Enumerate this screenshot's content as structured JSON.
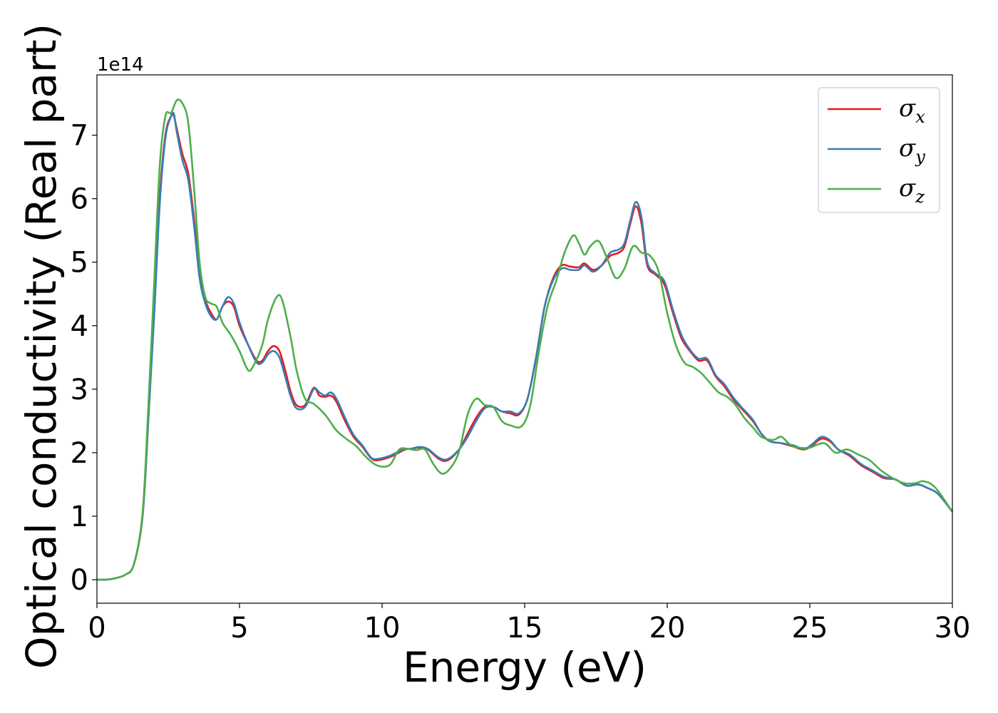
{
  "chart_data": {
    "type": "line",
    "xlabel": "Energy (eV)",
    "ylabel": "Optical conductivity (Real part)",
    "y_offset_label": "1e14",
    "xlim": [
      0,
      30
    ],
    "ylim": [
      -0.37,
      7.95
    ],
    "x_ticks": [
      0,
      5,
      10,
      15,
      20,
      25,
      30
    ],
    "y_ticks": [
      0,
      1,
      2,
      3,
      4,
      5,
      6,
      7
    ],
    "grid": false,
    "legend_position": "top-right",
    "series": [
      {
        "name": "σx",
        "symbol": "σ",
        "subscript": "x",
        "color": "#e41a1c",
        "points": [
          [
            0,
            0
          ],
          [
            0.5,
            0.01
          ],
          [
            1.0,
            0.08
          ],
          [
            1.3,
            0.25
          ],
          [
            1.6,
            1.0
          ],
          [
            1.8,
            2.5
          ],
          [
            2.0,
            4.2
          ],
          [
            2.2,
            6.0
          ],
          [
            2.4,
            7.0
          ],
          [
            2.6,
            7.3
          ],
          [
            2.7,
            7.3
          ],
          [
            2.8,
            7.1
          ],
          [
            3.0,
            6.7
          ],
          [
            3.2,
            6.4
          ],
          [
            3.4,
            5.7
          ],
          [
            3.6,
            4.8
          ],
          [
            3.8,
            4.4
          ],
          [
            4.0,
            4.2
          ],
          [
            4.2,
            4.1
          ],
          [
            4.4,
            4.3
          ],
          [
            4.6,
            4.38
          ],
          [
            4.8,
            4.3
          ],
          [
            5.0,
            4.0
          ],
          [
            5.3,
            3.7
          ],
          [
            5.6,
            3.45
          ],
          [
            5.8,
            3.45
          ],
          [
            6.0,
            3.6
          ],
          [
            6.2,
            3.68
          ],
          [
            6.4,
            3.6
          ],
          [
            6.6,
            3.3
          ],
          [
            6.8,
            2.95
          ],
          [
            7.0,
            2.75
          ],
          [
            7.3,
            2.75
          ],
          [
            7.6,
            3.02
          ],
          [
            7.8,
            2.9
          ],
          [
            8.0,
            2.88
          ],
          [
            8.2,
            2.9
          ],
          [
            8.4,
            2.8
          ],
          [
            8.7,
            2.5
          ],
          [
            9.0,
            2.25
          ],
          [
            9.3,
            2.1
          ],
          [
            9.6,
            1.92
          ],
          [
            9.8,
            1.88
          ],
          [
            10.2,
            1.92
          ],
          [
            10.5,
            1.98
          ],
          [
            10.8,
            2.05
          ],
          [
            11.0,
            2.06
          ],
          [
            11.3,
            2.08
          ],
          [
            11.6,
            2.05
          ],
          [
            12.0,
            1.9
          ],
          [
            12.3,
            1.88
          ],
          [
            12.7,
            2.05
          ],
          [
            13.0,
            2.3
          ],
          [
            13.3,
            2.55
          ],
          [
            13.6,
            2.72
          ],
          [
            13.9,
            2.72
          ],
          [
            14.2,
            2.65
          ],
          [
            14.5,
            2.62
          ],
          [
            14.8,
            2.6
          ],
          [
            15.1,
            2.85
          ],
          [
            15.4,
            3.5
          ],
          [
            15.7,
            4.3
          ],
          [
            16.0,
            4.75
          ],
          [
            16.3,
            4.95
          ],
          [
            16.6,
            4.93
          ],
          [
            16.9,
            4.92
          ],
          [
            17.1,
            4.98
          ],
          [
            17.4,
            4.88
          ],
          [
            17.7,
            4.95
          ],
          [
            18.0,
            5.1
          ],
          [
            18.3,
            5.15
          ],
          [
            18.5,
            5.25
          ],
          [
            18.7,
            5.6
          ],
          [
            18.9,
            5.88
          ],
          [
            19.1,
            5.6
          ],
          [
            19.3,
            4.95
          ],
          [
            19.6,
            4.8
          ],
          [
            19.9,
            4.65
          ],
          [
            20.2,
            4.2
          ],
          [
            20.5,
            3.8
          ],
          [
            20.8,
            3.6
          ],
          [
            21.1,
            3.45
          ],
          [
            21.4,
            3.45
          ],
          [
            21.7,
            3.2
          ],
          [
            22.0,
            3.05
          ],
          [
            22.3,
            2.85
          ],
          [
            22.6,
            2.7
          ],
          [
            23.0,
            2.5
          ],
          [
            23.3,
            2.3
          ],
          [
            23.6,
            2.18
          ],
          [
            24.0,
            2.15
          ],
          [
            24.4,
            2.1
          ],
          [
            24.8,
            2.05
          ],
          [
            25.1,
            2.12
          ],
          [
            25.4,
            2.22
          ],
          [
            25.7,
            2.18
          ],
          [
            26.0,
            2.05
          ],
          [
            26.4,
            1.95
          ],
          [
            26.8,
            1.8
          ],
          [
            27.2,
            1.7
          ],
          [
            27.6,
            1.6
          ],
          [
            28.0,
            1.58
          ],
          [
            28.4,
            1.48
          ],
          [
            28.8,
            1.5
          ],
          [
            29.1,
            1.45
          ],
          [
            29.5,
            1.35
          ],
          [
            30.0,
            1.07
          ]
        ]
      },
      {
        "name": "σy",
        "symbol": "σ",
        "subscript": "y",
        "color": "#377eb8",
        "points": [
          [
            0,
            0
          ],
          [
            0.5,
            0.01
          ],
          [
            1.0,
            0.08
          ],
          [
            1.3,
            0.25
          ],
          [
            1.6,
            1.0
          ],
          [
            1.8,
            2.5
          ],
          [
            2.0,
            4.1
          ],
          [
            2.2,
            5.9
          ],
          [
            2.4,
            6.95
          ],
          [
            2.6,
            7.3
          ],
          [
            2.7,
            7.33
          ],
          [
            2.8,
            7.05
          ],
          [
            3.0,
            6.6
          ],
          [
            3.2,
            6.3
          ],
          [
            3.4,
            5.6
          ],
          [
            3.6,
            4.75
          ],
          [
            3.8,
            4.35
          ],
          [
            4.0,
            4.15
          ],
          [
            4.2,
            4.1
          ],
          [
            4.4,
            4.3
          ],
          [
            4.6,
            4.45
          ],
          [
            4.8,
            4.35
          ],
          [
            5.0,
            4.05
          ],
          [
            5.3,
            3.7
          ],
          [
            5.6,
            3.42
          ],
          [
            5.8,
            3.42
          ],
          [
            6.0,
            3.55
          ],
          [
            6.2,
            3.6
          ],
          [
            6.4,
            3.5
          ],
          [
            6.6,
            3.2
          ],
          [
            6.8,
            2.88
          ],
          [
            7.0,
            2.7
          ],
          [
            7.3,
            2.72
          ],
          [
            7.6,
            3.0
          ],
          [
            7.8,
            2.95
          ],
          [
            8.0,
            2.9
          ],
          [
            8.2,
            2.95
          ],
          [
            8.4,
            2.85
          ],
          [
            8.7,
            2.55
          ],
          [
            9.0,
            2.28
          ],
          [
            9.3,
            2.12
          ],
          [
            9.6,
            1.93
          ],
          [
            9.8,
            1.9
          ],
          [
            10.2,
            1.94
          ],
          [
            10.5,
            2.0
          ],
          [
            10.8,
            2.06
          ],
          [
            11.0,
            2.06
          ],
          [
            11.3,
            2.09
          ],
          [
            11.6,
            2.06
          ],
          [
            12.0,
            1.92
          ],
          [
            12.3,
            1.9
          ],
          [
            12.7,
            2.05
          ],
          [
            13.0,
            2.25
          ],
          [
            13.3,
            2.5
          ],
          [
            13.6,
            2.7
          ],
          [
            13.9,
            2.72
          ],
          [
            14.2,
            2.65
          ],
          [
            14.5,
            2.65
          ],
          [
            14.8,
            2.62
          ],
          [
            15.1,
            2.85
          ],
          [
            15.4,
            3.5
          ],
          [
            15.7,
            4.3
          ],
          [
            16.0,
            4.72
          ],
          [
            16.3,
            4.9
          ],
          [
            16.6,
            4.88
          ],
          [
            16.9,
            4.88
          ],
          [
            17.1,
            4.95
          ],
          [
            17.4,
            4.85
          ],
          [
            17.7,
            4.95
          ],
          [
            18.0,
            5.15
          ],
          [
            18.3,
            5.2
          ],
          [
            18.5,
            5.3
          ],
          [
            18.7,
            5.65
          ],
          [
            18.9,
            5.95
          ],
          [
            19.1,
            5.7
          ],
          [
            19.3,
            5.0
          ],
          [
            19.6,
            4.82
          ],
          [
            19.9,
            4.7
          ],
          [
            20.2,
            4.25
          ],
          [
            20.5,
            3.85
          ],
          [
            20.8,
            3.62
          ],
          [
            21.1,
            3.48
          ],
          [
            21.4,
            3.48
          ],
          [
            21.7,
            3.22
          ],
          [
            22.0,
            3.08
          ],
          [
            22.3,
            2.88
          ],
          [
            22.6,
            2.72
          ],
          [
            23.0,
            2.52
          ],
          [
            23.3,
            2.3
          ],
          [
            23.6,
            2.18
          ],
          [
            24.0,
            2.15
          ],
          [
            24.4,
            2.12
          ],
          [
            24.8,
            2.06
          ],
          [
            25.1,
            2.14
          ],
          [
            25.4,
            2.25
          ],
          [
            25.7,
            2.2
          ],
          [
            26.0,
            2.05
          ],
          [
            26.4,
            1.97
          ],
          [
            26.8,
            1.82
          ],
          [
            27.2,
            1.72
          ],
          [
            27.6,
            1.62
          ],
          [
            28.0,
            1.58
          ],
          [
            28.4,
            1.48
          ],
          [
            28.8,
            1.5
          ],
          [
            29.1,
            1.45
          ],
          [
            29.5,
            1.35
          ],
          [
            30.0,
            1.07
          ]
        ]
      },
      {
        "name": "σz",
        "symbol": "σ",
        "subscript": "z",
        "color": "#4daf4a",
        "points": [
          [
            0,
            0
          ],
          [
            0.5,
            0.01
          ],
          [
            1.0,
            0.08
          ],
          [
            1.3,
            0.25
          ],
          [
            1.6,
            1.05
          ],
          [
            1.8,
            2.7
          ],
          [
            2.0,
            4.6
          ],
          [
            2.2,
            6.5
          ],
          [
            2.4,
            7.3
          ],
          [
            2.6,
            7.35
          ],
          [
            2.8,
            7.55
          ],
          [
            3.0,
            7.5
          ],
          [
            3.2,
            7.2
          ],
          [
            3.4,
            6.2
          ],
          [
            3.6,
            5.0
          ],
          [
            3.8,
            4.45
          ],
          [
            4.0,
            4.35
          ],
          [
            4.2,
            4.3
          ],
          [
            4.4,
            4.05
          ],
          [
            4.7,
            3.85
          ],
          [
            5.0,
            3.6
          ],
          [
            5.3,
            3.3
          ],
          [
            5.5,
            3.38
          ],
          [
            5.8,
            3.7
          ],
          [
            6.0,
            4.1
          ],
          [
            6.3,
            4.45
          ],
          [
            6.5,
            4.4
          ],
          [
            6.8,
            3.8
          ],
          [
            7.0,
            3.3
          ],
          [
            7.3,
            2.85
          ],
          [
            7.6,
            2.77
          ],
          [
            8.0,
            2.6
          ],
          [
            8.4,
            2.35
          ],
          [
            8.8,
            2.2
          ],
          [
            9.1,
            2.1
          ],
          [
            9.4,
            1.95
          ],
          [
            9.7,
            1.83
          ],
          [
            10.0,
            1.78
          ],
          [
            10.3,
            1.82
          ],
          [
            10.6,
            2.05
          ],
          [
            10.9,
            2.06
          ],
          [
            11.2,
            2.04
          ],
          [
            11.5,
            2.05
          ],
          [
            11.8,
            1.82
          ],
          [
            12.1,
            1.67
          ],
          [
            12.4,
            1.76
          ],
          [
            12.7,
            2.02
          ],
          [
            13.0,
            2.6
          ],
          [
            13.3,
            2.85
          ],
          [
            13.6,
            2.75
          ],
          [
            13.9,
            2.72
          ],
          [
            14.2,
            2.5
          ],
          [
            14.5,
            2.43
          ],
          [
            14.9,
            2.42
          ],
          [
            15.2,
            2.75
          ],
          [
            15.5,
            3.6
          ],
          [
            15.8,
            4.3
          ],
          [
            16.1,
            4.7
          ],
          [
            16.4,
            5.15
          ],
          [
            16.7,
            5.42
          ],
          [
            16.9,
            5.3
          ],
          [
            17.1,
            5.12
          ],
          [
            17.3,
            5.25
          ],
          [
            17.6,
            5.33
          ],
          [
            17.9,
            5.05
          ],
          [
            18.2,
            4.75
          ],
          [
            18.5,
            4.9
          ],
          [
            18.8,
            5.25
          ],
          [
            19.1,
            5.15
          ],
          [
            19.4,
            5.1
          ],
          [
            19.7,
            4.85
          ],
          [
            20.0,
            4.2
          ],
          [
            20.3,
            3.7
          ],
          [
            20.6,
            3.42
          ],
          [
            20.9,
            3.35
          ],
          [
            21.2,
            3.25
          ],
          [
            21.5,
            3.1
          ],
          [
            21.8,
            2.95
          ],
          [
            22.1,
            2.88
          ],
          [
            22.4,
            2.75
          ],
          [
            22.7,
            2.55
          ],
          [
            23.0,
            2.4
          ],
          [
            23.3,
            2.25
          ],
          [
            23.7,
            2.2
          ],
          [
            24.0,
            2.25
          ],
          [
            24.3,
            2.13
          ],
          [
            24.6,
            2.08
          ],
          [
            25.0,
            2.08
          ],
          [
            25.5,
            2.15
          ],
          [
            25.9,
            2.0
          ],
          [
            26.3,
            2.05
          ],
          [
            26.7,
            1.97
          ],
          [
            27.1,
            1.88
          ],
          [
            27.5,
            1.72
          ],
          [
            27.9,
            1.6
          ],
          [
            28.3,
            1.52
          ],
          [
            28.7,
            1.52
          ],
          [
            29.0,
            1.55
          ],
          [
            29.4,
            1.45
          ],
          [
            30.0,
            1.07
          ]
        ]
      }
    ]
  }
}
